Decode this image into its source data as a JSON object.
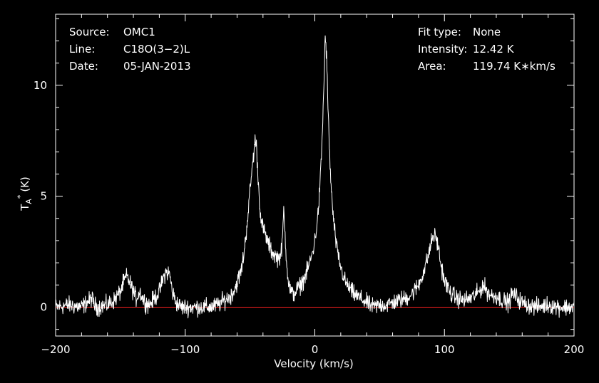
{
  "chart_data": {
    "type": "line",
    "xlabel": "Velocity (km/s)",
    "ylabel": "T",
    "ylabel_sub": "A",
    "ylabel_sup": "*",
    "ylabel_unit": "(K)",
    "xlim": [
      -200,
      200
    ],
    "ylim": [
      -1.3,
      13.2
    ],
    "xticks_major": [
      -200,
      -100,
      0,
      100,
      200
    ],
    "yticks_major": [
      0,
      5,
      10
    ],
    "xticks_minor_step": 20,
    "yticks_minor_step": 1,
    "grid": false,
    "colors": {
      "background": "#000000",
      "spectrum": "#ffffff",
      "baseline": "#ff2020",
      "axes": "#ffffff"
    },
    "baseline_y": 0,
    "annotations_left": [
      {
        "label": "Source:",
        "value": "OMC1"
      },
      {
        "label": "Line:",
        "value": "C18O(3−2)L"
      },
      {
        "label": "Date:",
        "value": "05-JAN-2013"
      }
    ],
    "annotations_right": [
      {
        "label": "Fit type:",
        "value": "None"
      },
      {
        "label": "Intensity:",
        "value": "12.42 K"
      },
      {
        "label": "Area:",
        "value": "119.74 K∗km/s"
      }
    ],
    "series": [
      {
        "noise": 0.38,
        "x": [
          -200,
          -190,
          -180,
          -172,
          -170,
          -168,
          -160,
          -155,
          -150,
          -147,
          -145,
          -142,
          -138,
          -135,
          -132,
          -128,
          -125,
          -120,
          -117,
          -115,
          -112,
          -110,
          -107,
          -103,
          -100,
          -90,
          -80,
          -75,
          -70,
          -65,
          -62,
          -60,
          -57,
          -55,
          -53,
          -51,
          -49,
          -47,
          -46,
          -45,
          -44,
          -43,
          -42,
          -41,
          -40,
          -38,
          -36,
          -34,
          -32,
          -30,
          -28,
          -26,
          -25,
          -24,
          -23,
          -22,
          -21,
          -20,
          -18,
          -16,
          -14,
          -12,
          -10,
          -8,
          -6,
          -4,
          -2,
          0,
          2,
          3,
          4,
          5,
          6,
          7,
          8,
          9,
          10,
          11,
          12,
          13,
          14,
          15,
          17,
          20,
          23,
          26,
          30,
          35,
          40,
          45,
          50,
          55,
          60,
          65,
          70,
          75,
          80,
          84,
          87,
          89,
          91,
          93,
          95,
          97,
          100,
          105,
          110,
          115,
          120,
          125,
          128,
          130,
          133,
          137,
          140,
          145,
          150,
          152,
          155,
          160,
          170,
          180,
          190,
          200
        ],
        "y": [
          0.0,
          0.1,
          0.0,
          0.4,
          0.1,
          0.0,
          0.1,
          0.3,
          0.7,
          1.2,
          1.4,
          1.0,
          0.4,
          0.7,
          0.3,
          0.1,
          0.3,
          0.7,
          1.3,
          1.6,
          1.5,
          0.7,
          0.2,
          0.0,
          0.0,
          0.0,
          0.0,
          0.1,
          0.3,
          0.5,
          0.8,
          1.1,
          1.6,
          2.3,
          3.3,
          4.6,
          5.9,
          7.0,
          7.6,
          7.2,
          6.1,
          5.0,
          4.3,
          3.7,
          3.6,
          3.2,
          2.9,
          2.6,
          2.4,
          2.3,
          2.2,
          2.4,
          3.0,
          4.4,
          3.3,
          2.3,
          1.5,
          1.0,
          0.6,
          0.6,
          0.8,
          0.9,
          1.1,
          1.3,
          1.6,
          2.0,
          2.4,
          3.0,
          3.9,
          4.6,
          5.5,
          6.7,
          8.2,
          10.0,
          12.2,
          11.4,
          9.3,
          7.5,
          6.1,
          5.0,
          4.2,
          3.6,
          2.6,
          1.8,
          1.2,
          0.9,
          0.6,
          0.4,
          0.2,
          0.0,
          0.1,
          0.1,
          0.2,
          0.3,
          0.4,
          0.6,
          1.0,
          1.6,
          2.2,
          2.7,
          3.2,
          3.2,
          2.8,
          2.0,
          1.2,
          0.6,
          0.4,
          0.3,
          0.4,
          0.6,
          0.8,
          1.0,
          0.7,
          0.5,
          0.5,
          0.3,
          0.2,
          0.6,
          0.5,
          0.2,
          0.0,
          0.1,
          0.0,
          0.0
        ]
      }
    ]
  }
}
